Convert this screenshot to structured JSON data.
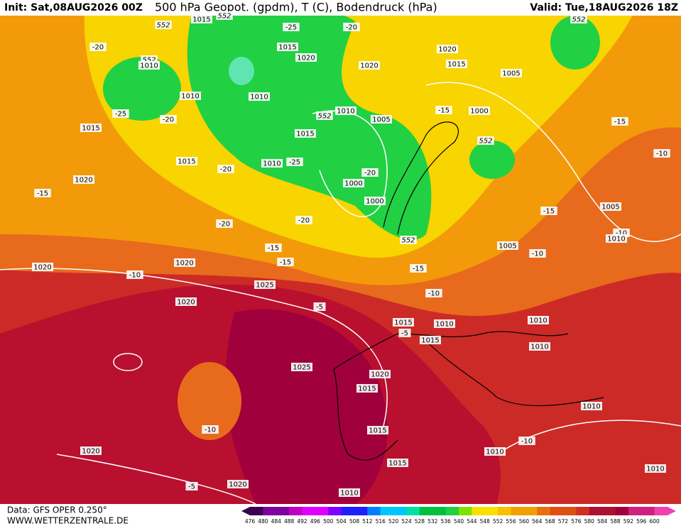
{
  "header": {
    "init": "Init: Sat,08AUG2026 00Z",
    "title": "500 hPa Geopot. (gpdm), T (C), Bodendruck (hPa)",
    "valid": "Valid: Tue,18AUG2026 18Z"
  },
  "footer": {
    "data": "Data: GFS OPER 0.250°",
    "site": "WWW.WETTERZENTRALE.DE"
  },
  "map": {
    "labels": [
      "552",
      "552",
      "1015",
      "-25",
      "-20",
      "552",
      "-20",
      "1015",
      "1020",
      "1020",
      "1015",
      "1020",
      "552",
      "1010",
      "1005",
      "1010",
      "1010",
      "-25",
      "-20",
      "552",
      "1010",
      "1005",
      "-15",
      "1000",
      "-15",
      "1015",
      "1015",
      "552",
      "-10",
      "1015",
      "1010",
      "-25",
      "-20",
      "-20",
      "1020",
      "1000",
      "-15",
      "1000",
      "1005",
      "-15",
      "-20",
      "-20",
      "-10",
      "1010",
      "552",
      "-15",
      "1005",
      "-10",
      "1020",
      "-15",
      "1020",
      "-10",
      "-15",
      "1025",
      "-10",
      "1020",
      "-5",
      "1015",
      "1010",
      "-5",
      "1010",
      "1015",
      "1010",
      "1025",
      "1020",
      "1015",
      "1010",
      "-10",
      "1015",
      "-10",
      "1020",
      "1010",
      "1015",
      "1010",
      "-5",
      "1020",
      "1010"
    ]
  },
  "legend": {
    "values": [
      476,
      480,
      484,
      488,
      492,
      496,
      500,
      504,
      508,
      512,
      516,
      520,
      524,
      528,
      532,
      536,
      540,
      544,
      548,
      552,
      556,
      560,
      564,
      568,
      572,
      576,
      580,
      584,
      588,
      592,
      596,
      600
    ]
  }
}
